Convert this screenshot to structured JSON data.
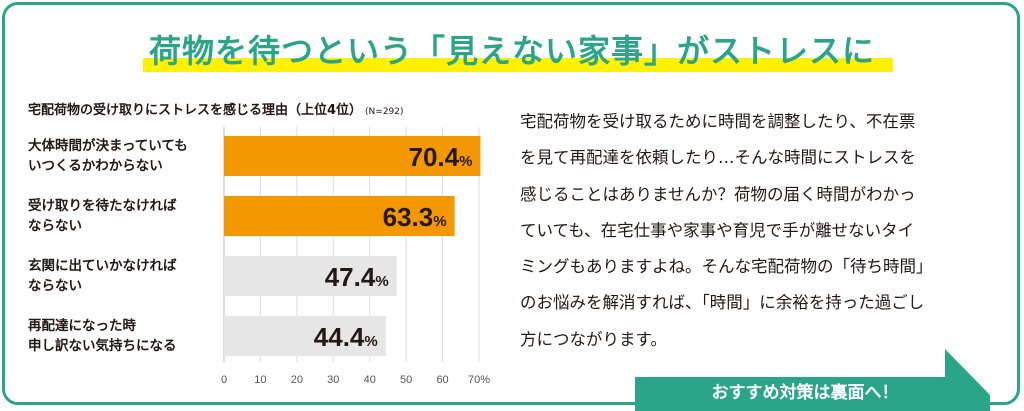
{
  "title": "荷物を待つという「見えない家事」がストレスに",
  "chart_data": {
    "type": "bar",
    "title": "宅配荷物の受け取りにストレスを感じる理由（上位4位）",
    "note": "(N=292)",
    "categories": [
      [
        "大体時間が決まっていても",
        "いつくるかわからない"
      ],
      [
        "受け取りを待たなければ",
        "ならない"
      ],
      [
        "玄関に出ていかなければ",
        "ならない"
      ],
      [
        "再配達になった時",
        "申し訳ない気持ちになる"
      ]
    ],
    "values": [
      70.4,
      63.3,
      47.4,
      44.4
    ],
    "value_labels": [
      "70.4",
      "63.3",
      "47.4",
      "44.4"
    ],
    "unit": "%",
    "xlim": [
      0,
      70
    ],
    "ticks": [
      "0",
      "10",
      "20",
      "30",
      "40",
      "50",
      "60",
      "70%"
    ],
    "colors": [
      "#f39800",
      "#f39800",
      "#e6e6e6",
      "#e6e6e6"
    ],
    "grid": true
  },
  "paragraph": [
    "宅配荷物を受け取るために時間を調整したり、不在票",
    "を見て再配達を依頼したり…そんな時間にストレスを",
    "感じることはありませんか？荷物の届く時間がわかっ",
    "ていても、在宅仕事や家事や育児で手が離せないタイ",
    "ミングもありますよね。そんな宅配荷物の「待ち時間」",
    "のお悩みを解消すれば、「時間」に余裕を持った過ごし",
    "方につながります。"
  ],
  "button": "おすすめ対策は裏面へ！",
  "colors": {
    "accent": "#2aa58a",
    "highlight": "#fff100",
    "bar_top": "#f39800",
    "bar_other": "#e6e6e6"
  }
}
